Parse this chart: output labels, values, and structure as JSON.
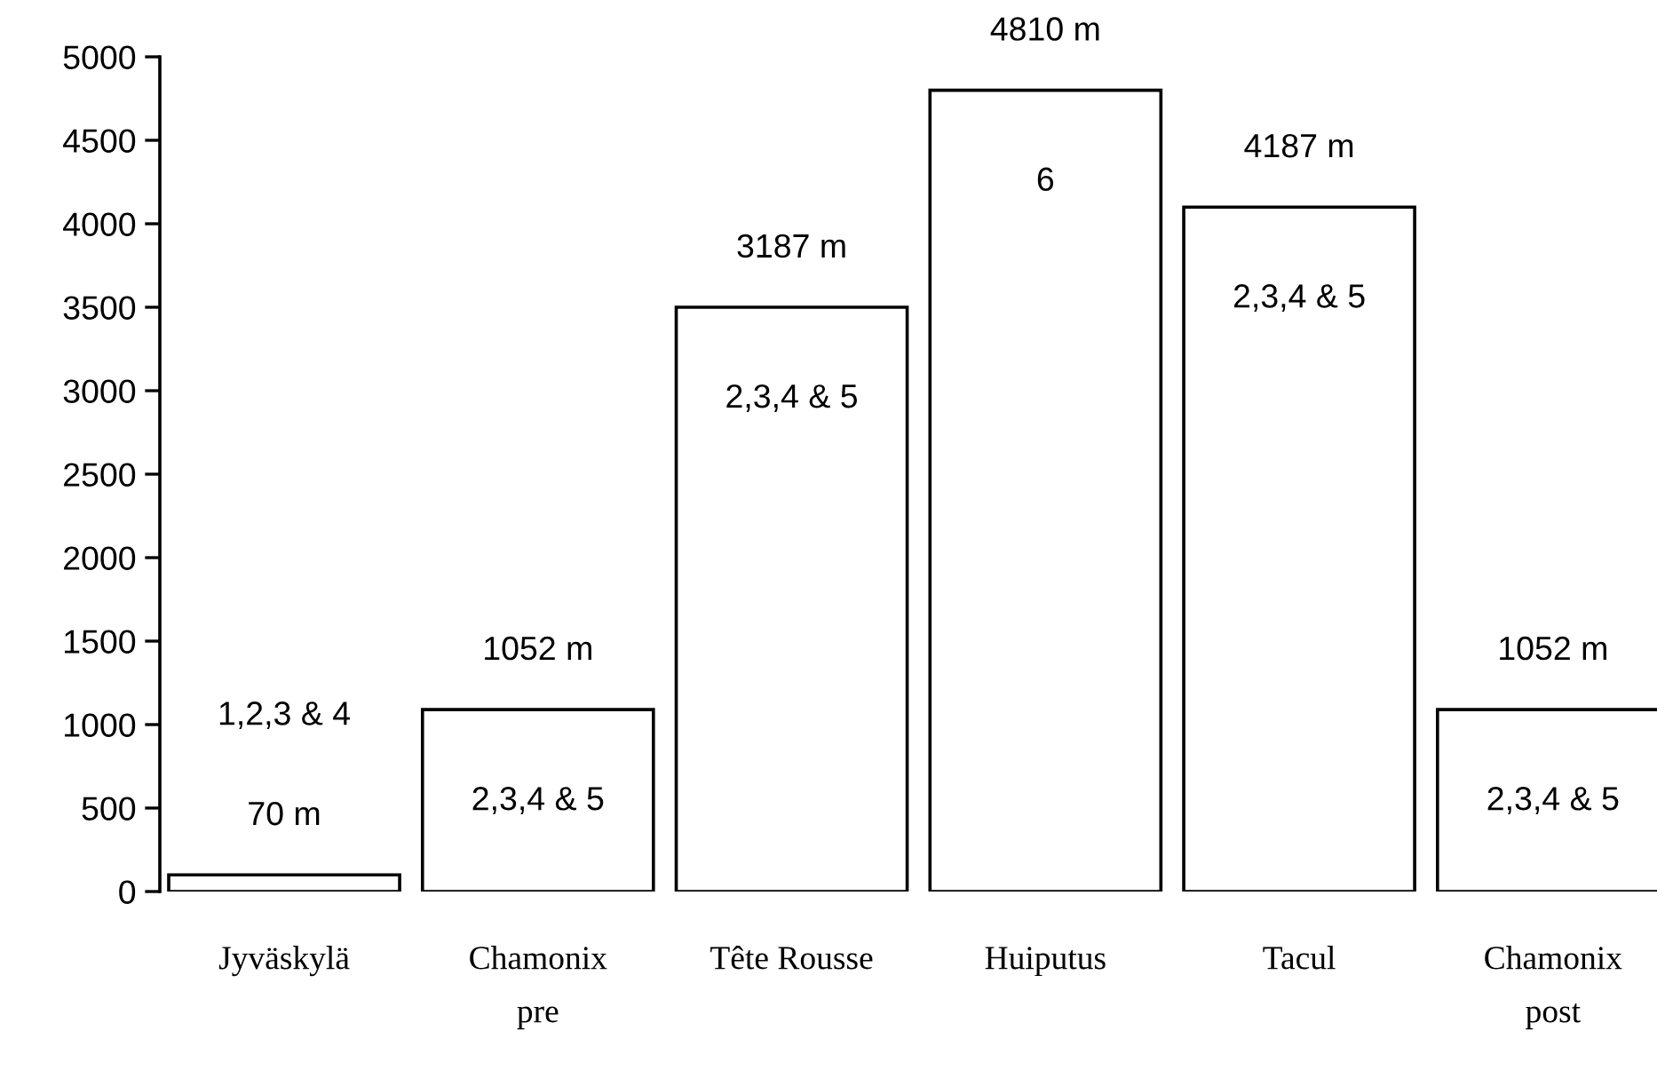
{
  "chart_data": {
    "type": "bar",
    "categories": [
      "Jyväskylä",
      "Chamonix\npre",
      "Tête Rousse",
      "Huiputus",
      "Tacul",
      "Chamonix\npost"
    ],
    "values": [
      100,
      1090,
      3500,
      4800,
      4100,
      1090
    ],
    "color": "#ffffff",
    "ylim": [
      0,
      5000
    ],
    "yticks": [
      0,
      500,
      1000,
      1500,
      2000,
      2500,
      3000,
      3500,
      4000,
      4500,
      5000
    ],
    "grid": false,
    "legend": false,
    "annotations": [
      "70 m",
      "1,2,3 & 4",
      "1052 m",
      "2,3,4 & 5",
      "3187 m",
      "2,3,4 & 5",
      "4810 m",
      "6",
      "4187 m",
      "2,3,4 & 5",
      "1052 m",
      "2,3,4 & 5"
    ]
  }
}
